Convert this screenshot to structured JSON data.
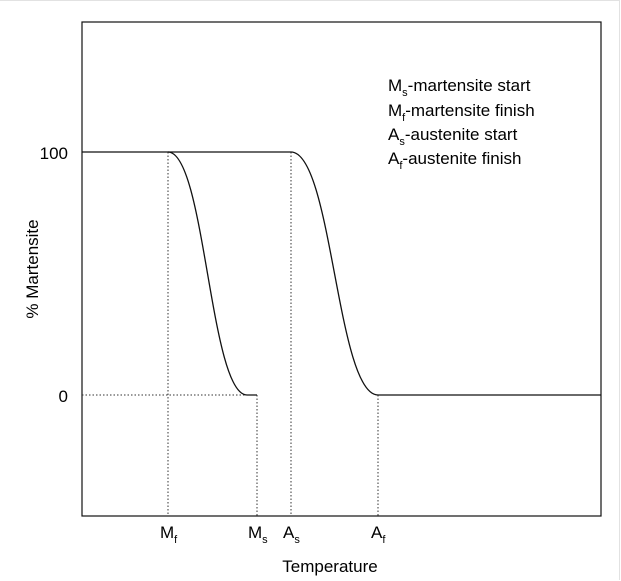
{
  "chart_data": {
    "type": "line",
    "xlabel": "Temperature",
    "ylabel": "% Martensite",
    "y_ticks": [
      "100",
      "0"
    ],
    "x_ticks": [
      {
        "main": "M",
        "sub": "f"
      },
      {
        "main": "M",
        "sub": "s"
      },
      {
        "main": "A",
        "sub": "s"
      },
      {
        "main": "A",
        "sub": "f"
      }
    ],
    "legend": [
      {
        "main": "M",
        "sub": "s",
        "text": "-martensite start"
      },
      {
        "main": "M",
        "sub": "f",
        "text": "-martensite finish"
      },
      {
        "main": "A",
        "sub": "s",
        "text": "-austenite start"
      },
      {
        "main": "A",
        "sub": "f",
        "text": "-austenite finish"
      }
    ],
    "legend_position": "top-right",
    "grid": false,
    "series": [
      {
        "values": [
          [
            0,
            100
          ],
          [
            1,
            100
          ],
          [
            2,
            0
          ]
        ]
      },
      {
        "values": [
          [
            1,
            100
          ],
          [
            3,
            100
          ],
          [
            4,
            0
          ],
          [
            5,
            0
          ]
        ]
      }
    ],
    "colors": {
      "line": "#111111",
      "guide": "#333333"
    }
  }
}
